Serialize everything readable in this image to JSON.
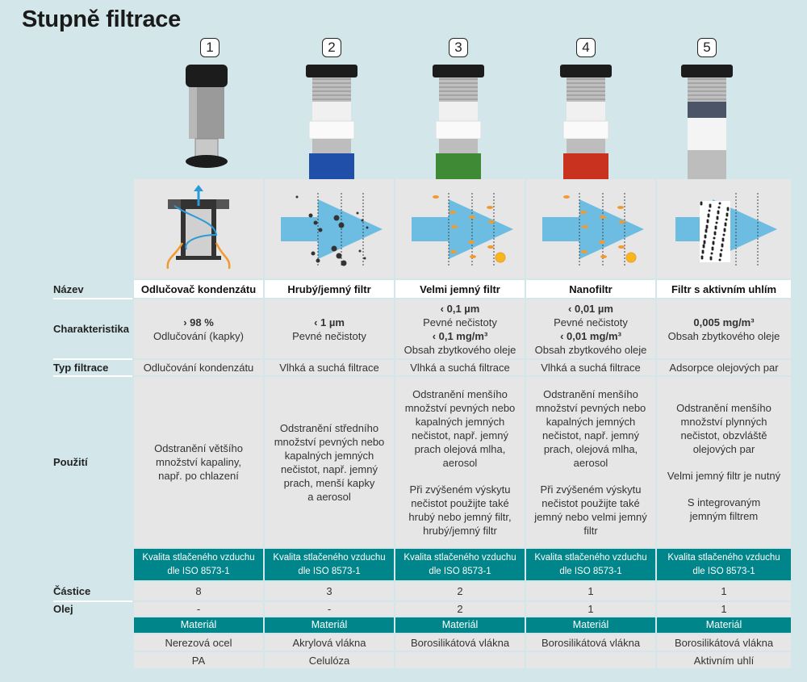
{
  "title": "Stupně filtrace",
  "row_labels": {
    "name": "Název",
    "characteristic": "Charakteristika",
    "filtration_type": "Typ filtrace",
    "usage": "Použití",
    "particles": "Částice",
    "oil": "Olej"
  },
  "colors": {
    "background": "#d3e7ea",
    "cell": "#e6e6e6",
    "accent_teal": "#00868a",
    "blue_arrow": "#6dbde3",
    "orange": "#f29a2e"
  },
  "stages": [
    {
      "number": "1",
      "name": "Odlučovač kondenzátu",
      "char_value": "› 98 %",
      "char_desc": "Odlučování (kapky)",
      "char_value2": "",
      "char_desc2": "",
      "type": "Odlučování kondenzátu",
      "usage": [
        "Odstranění většího",
        "množství kapaliny,",
        "např. po chlazení"
      ],
      "usage2": [],
      "quality": "Kvalita stlačeného vzduchu",
      "quality2": "dle ISO 8573-1",
      "particles": "8",
      "oil": "-",
      "material_label": "Materiál",
      "material1": "Nerezová ocel",
      "material2": "PA",
      "band_color": "#1a1a1a"
    },
    {
      "number": "2",
      "name": "Hrubý/jemný filtr",
      "char_value": "‹ 1 µm",
      "char_desc": "Pevné nečistoty",
      "char_value2": "",
      "char_desc2": "",
      "type": "Vlhká a suchá filtrace",
      "usage": [
        "Odstranění středního",
        "množství pevných nebo",
        "kapalných jemných",
        "nečistot, např. jemný",
        "prach, menší kapky",
        "a aerosol"
      ],
      "usage2": [],
      "quality": "Kvalita stlačeného vzduchu",
      "quality2": "dle ISO 8573-1",
      "particles": "3",
      "oil": "-",
      "material_label": "Materiál",
      "material1": "Akrylová vlákna",
      "material2": "Celulóza",
      "band_color": "#1f4fa8"
    },
    {
      "number": "3",
      "name": "Velmi jemný filtr",
      "char_value": "‹ 0,1 µm",
      "char_desc": "Pevné nečistoty",
      "char_value2": "‹ 0,1 mg/m³",
      "char_desc2": "Obsah zbytkového oleje",
      "type": "Vlhká a suchá filtrace",
      "usage": [
        "Odstranění menšího",
        "množství pevných nebo",
        "kapalných jemných",
        "nečistot, např. jemný",
        "prach olejová mlha,",
        "aerosol"
      ],
      "usage2": [
        "Při zvýšeném výskytu",
        "nečistot použijte také",
        "hrubý nebo jemný filtr,",
        "hrubý/jemný filtr"
      ],
      "quality": "Kvalita stlačeného vzduchu",
      "quality2": "dle ISO 8573-1",
      "particles": "2",
      "oil": "2",
      "material_label": "Materiál",
      "material1": "Borosilikátová vlákna",
      "material2": "",
      "band_color": "#3f8a34"
    },
    {
      "number": "4",
      "name": "Nanofiltr",
      "char_value": "‹ 0,01 µm",
      "char_desc": "Pevné nečistoty",
      "char_value2": "‹ 0,01 mg/m³",
      "char_desc2": "Obsah zbytkového oleje",
      "type": "Vlhká a suchá filtrace",
      "usage": [
        "Odstranění menšího",
        "množství pevných nebo",
        "kapalných jemných",
        "nečistot, např. jemný",
        "prach, olejová mlha,",
        "aerosol"
      ],
      "usage2": [
        "Při zvýšeném výskytu",
        "nečistot použijte také",
        "jemný nebo velmi jemný",
        "filtr"
      ],
      "quality": "Kvalita stlačeného vzduchu",
      "quality2": "dle ISO 8573-1",
      "particles": "1",
      "oil": "1",
      "material_label": "Materiál",
      "material1": "Borosilikátová vlákna",
      "material2": "",
      "band_color": "#c8321e"
    },
    {
      "number": "5",
      "name": "Filtr s aktivním uhlím",
      "char_value": "0,005 mg/m³",
      "char_desc": "Obsah zbytkového oleje",
      "char_value2": "",
      "char_desc2": "",
      "type": "Adsorpce olejových par",
      "usage": [
        "Odstranění menšího",
        "množství plynných",
        "nečistot, obzvláště",
        "olejových par"
      ],
      "usage2": [
        "Velmi jemný filtr je nutný",
        "",
        "S integrovaným",
        "jemným filtrem"
      ],
      "quality": "Kvalita stlačeného vzduchu",
      "quality2": "dle ISO 8573-1",
      "particles": "1",
      "oil": "1",
      "material_label": "Materiál",
      "material1": "Borosilikátová vlákna",
      "material2": "Aktivním uhlí",
      "band_color": "#d8d8d8"
    }
  ]
}
